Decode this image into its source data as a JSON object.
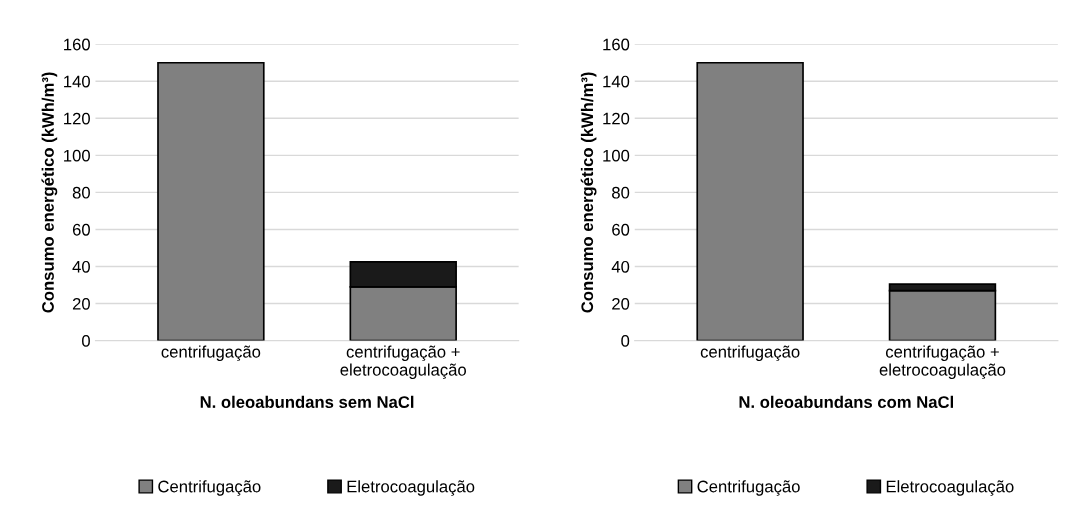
{
  "chart_data": [
    {
      "type": "bar",
      "stacked": true,
      "categories": [
        "centrifugação",
        "centrifugação +\neletrocoagulação"
      ],
      "series": [
        {
          "name": "Centrifugação",
          "color": "#808080",
          "values": [
            150,
            29
          ]
        },
        {
          "name": "Eletrocoagulação",
          "color": "#1a1a1a",
          "values": [
            null,
            13.5
          ]
        }
      ],
      "xlabel": "N. oleoabundans sem NaCl",
      "ylabel": "Consumo energético (kWh/m³)",
      "ylim": [
        0,
        160
      ],
      "yticks": [
        0,
        20,
        40,
        60,
        80,
        100,
        120,
        140,
        160
      ],
      "grid": "y",
      "legend": "bottom"
    },
    {
      "type": "bar",
      "stacked": true,
      "categories": [
        "centrifugação",
        "centrifugação +\neletrocoagulação"
      ],
      "series": [
        {
          "name": "Centrifugação",
          "color": "#808080",
          "values": [
            150,
            27
          ]
        },
        {
          "name": "Eletrocoagulação",
          "color": "#1a1a1a",
          "values": [
            null,
            3.5
          ]
        }
      ],
      "xlabel": "N. oleoabundans com NaCl",
      "ylabel": "Consumo energético (kWh/m³)",
      "ylim": [
        0,
        160
      ],
      "yticks": [
        0,
        20,
        40,
        60,
        80,
        100,
        120,
        140,
        160
      ],
      "grid": "y",
      "legend": "bottom"
    }
  ]
}
